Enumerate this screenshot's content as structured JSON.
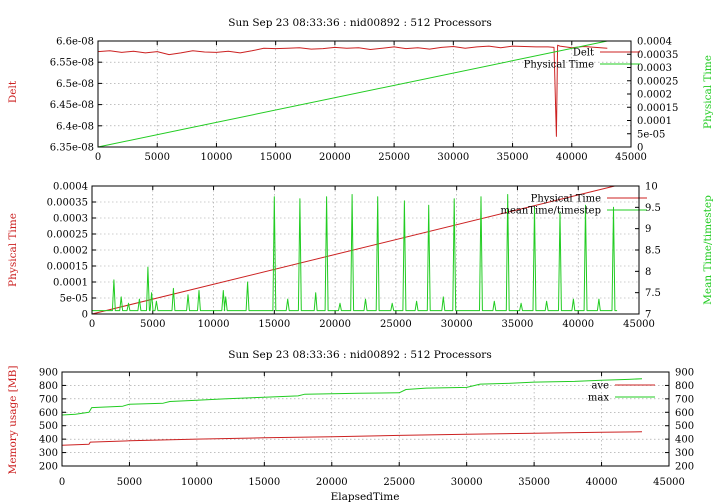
{
  "chart_data": [
    {
      "type": "line",
      "title": "Sun Sep 23 08:33:36 : nid00892 : 512 Processors",
      "xlabel": "",
      "ylabel": "Delt",
      "y2label": "Physical Time",
      "xlim": [
        0,
        45000
      ],
      "ylim": [
        6.35e-08,
        6.6e-08
      ],
      "y2lim": [
        0,
        0.0004
      ],
      "xticks": [
        "0",
        "5000",
        "10000",
        "15000",
        "20000",
        "25000",
        "30000",
        "35000",
        "40000",
        "45000"
      ],
      "yticks": [
        "6.35e-08",
        "6.4e-08",
        "6.45e-08",
        "6.5e-08",
        "6.55e-08",
        "6.6e-08"
      ],
      "y2ticks": [
        "0",
        "5e-05",
        "0.0001",
        "0.00015",
        "0.0002",
        "0.00025",
        "0.0003",
        "0.00035",
        "0.0004"
      ],
      "grid": true,
      "legend": "top-right",
      "series": [
        {
          "name": "Delt",
          "axis": "y",
          "color": "#cc2222",
          "x": [
            0,
            1000,
            2000,
            3000,
            4000,
            5000,
            6000,
            7000,
            8000,
            9000,
            10000,
            11000,
            12000,
            13000,
            14000,
            15000,
            16000,
            17000,
            18000,
            19000,
            20000,
            21000,
            22000,
            23000,
            24000,
            25000,
            26000,
            27000,
            28000,
            29000,
            30000,
            31000,
            32000,
            33000,
            34000,
            35000,
            36000,
            37000,
            38000,
            38500,
            38700,
            38800,
            39000,
            40000,
            41000,
            42000,
            43000
          ],
          "y": [
            6.575e-08,
            6.577e-08,
            6.573e-08,
            6.576e-08,
            6.572e-08,
            6.575e-08,
            6.568e-08,
            6.572e-08,
            6.577e-08,
            6.574e-08,
            6.573e-08,
            6.576e-08,
            6.572e-08,
            6.577e-08,
            6.583e-08,
            6.582e-08,
            6.583e-08,
            6.584e-08,
            6.581e-08,
            6.582e-08,
            6.585e-08,
            6.583e-08,
            6.584e-08,
            6.58e-08,
            6.583e-08,
            6.586e-08,
            6.582e-08,
            6.584e-08,
            6.581e-08,
            6.585e-08,
            6.587e-08,
            6.583e-08,
            6.586e-08,
            6.588e-08,
            6.584e-08,
            6.588e-08,
            6.587e-08,
            6.586e-08,
            6.586e-08,
            6.585e-08,
            6.375e-08,
            6.59e-08,
            6.588e-08,
            6.584e-08,
            6.587e-08,
            6.585e-08,
            6.583e-08
          ]
        },
        {
          "name": "Physical Time",
          "axis": "y2",
          "color": "#22cc22",
          "x": [
            0,
            43000
          ],
          "y": [
            0,
            0.0004
          ]
        }
      ]
    },
    {
      "type": "line",
      "title": "",
      "xlabel": "",
      "ylabel": "Physical Time",
      "y2label": "Mean Time/timestep",
      "xlim": [
        0,
        45000
      ],
      "ylim": [
        0,
        0.0004
      ],
      "y2lim": [
        7,
        10
      ],
      "xticks": [
        "0",
        "5000",
        "10000",
        "15000",
        "20000",
        "25000",
        "30000",
        "35000",
        "40000",
        "45000"
      ],
      "yticks": [
        "0",
        "5e-05",
        "0.0001",
        "0.00015",
        "0.0002",
        "0.00025",
        "0.0003",
        "0.00035",
        "0.0004"
      ],
      "y2ticks": [
        "7",
        "7.5",
        "8",
        "8.5",
        "9",
        "9.5",
        "10"
      ],
      "grid": true,
      "legend": "top-right",
      "series": [
        {
          "name": "Physical Time",
          "axis": "y",
          "color": "#cc2222",
          "x": [
            0,
            43000
          ],
          "y": [
            0,
            0.0004
          ]
        },
        {
          "name": "meanTime/timestep",
          "axis": "y2",
          "color": "#22cc22",
          "baseline": 7.08,
          "x_end": 43200,
          "spikes": [
            {
              "x": 1800,
              "y": 7.8
            },
            {
              "x": 2400,
              "y": 7.4
            },
            {
              "x": 3000,
              "y": 7.25
            },
            {
              "x": 3900,
              "y": 7.35
            },
            {
              "x": 4600,
              "y": 8.1
            },
            {
              "x": 4900,
              "y": 7.5
            },
            {
              "x": 5300,
              "y": 7.3
            },
            {
              "x": 6700,
              "y": 7.6
            },
            {
              "x": 7900,
              "y": 7.45
            },
            {
              "x": 8800,
              "y": 7.55
            },
            {
              "x": 10800,
              "y": 7.55
            },
            {
              "x": 11000,
              "y": 7.4
            },
            {
              "x": 12800,
              "y": 7.75
            },
            {
              "x": 15000,
              "y": 9.75
            },
            {
              "x": 16100,
              "y": 7.35
            },
            {
              "x": 17100,
              "y": 9.7
            },
            {
              "x": 18400,
              "y": 7.5
            },
            {
              "x": 19300,
              "y": 9.75
            },
            {
              "x": 20400,
              "y": 7.25
            },
            {
              "x": 21400,
              "y": 9.8
            },
            {
              "x": 22500,
              "y": 7.35
            },
            {
              "x": 23500,
              "y": 9.75
            },
            {
              "x": 24700,
              "y": 7.25
            },
            {
              "x": 25700,
              "y": 9.65
            },
            {
              "x": 26700,
              "y": 7.3
            },
            {
              "x": 27700,
              "y": 9.55
            },
            {
              "x": 28900,
              "y": 7.4
            },
            {
              "x": 29800,
              "y": 9.7
            },
            {
              "x": 32000,
              "y": 9.75
            },
            {
              "x": 33100,
              "y": 7.3
            },
            {
              "x": 34200,
              "y": 9.8
            },
            {
              "x": 35300,
              "y": 7.25
            },
            {
              "x": 36400,
              "y": 9.5
            },
            {
              "x": 37400,
              "y": 7.3
            },
            {
              "x": 38500,
              "y": 9.4
            },
            {
              "x": 39600,
              "y": 7.35
            },
            {
              "x": 40600,
              "y": 9.55
            },
            {
              "x": 41700,
              "y": 7.35
            },
            {
              "x": 42900,
              "y": 9.5
            }
          ]
        }
      ]
    },
    {
      "type": "line",
      "title": "Sun Sep 23 08:33:36 : nid00892 : 512 Processors",
      "xlabel": "ElapsedTime",
      "ylabel": "Memory usage [MB]",
      "y2label": "",
      "xlim": [
        0,
        45000
      ],
      "ylim": [
        200,
        900
      ],
      "y2lim": [
        200,
        900
      ],
      "xticks": [
        "0",
        "5000",
        "10000",
        "15000",
        "20000",
        "25000",
        "30000",
        "35000",
        "40000",
        "45000"
      ],
      "yticks": [
        "200",
        "300",
        "400",
        "500",
        "600",
        "700",
        "800",
        "900"
      ],
      "y2ticks": [
        "200",
        "300",
        "400",
        "500",
        "600",
        "700",
        "800",
        "900"
      ],
      "grid": true,
      "legend": "top-right",
      "series": [
        {
          "name": "ave",
          "axis": "y",
          "color": "#cc2222",
          "x": [
            0,
            2000,
            2100,
            5000,
            10000,
            15000,
            20000,
            25000,
            30000,
            35000,
            40000,
            43000
          ],
          "y": [
            355,
            362,
            378,
            388,
            400,
            410,
            418,
            428,
            436,
            444,
            452,
            455
          ]
        },
        {
          "name": "max",
          "axis": "y",
          "color": "#22cc22",
          "x": [
            0,
            1000,
            2000,
            2200,
            4500,
            5000,
            7500,
            8000,
            10000,
            12000,
            15000,
            17500,
            18000,
            22000,
            25000,
            25500,
            27000,
            30000,
            31000,
            33000,
            35000,
            38000,
            40000,
            42000,
            43000
          ],
          "y": [
            580,
            585,
            600,
            635,
            645,
            660,
            668,
            680,
            690,
            700,
            712,
            722,
            735,
            742,
            745,
            770,
            780,
            785,
            810,
            815,
            825,
            830,
            838,
            845,
            850
          ]
        }
      ]
    }
  ]
}
